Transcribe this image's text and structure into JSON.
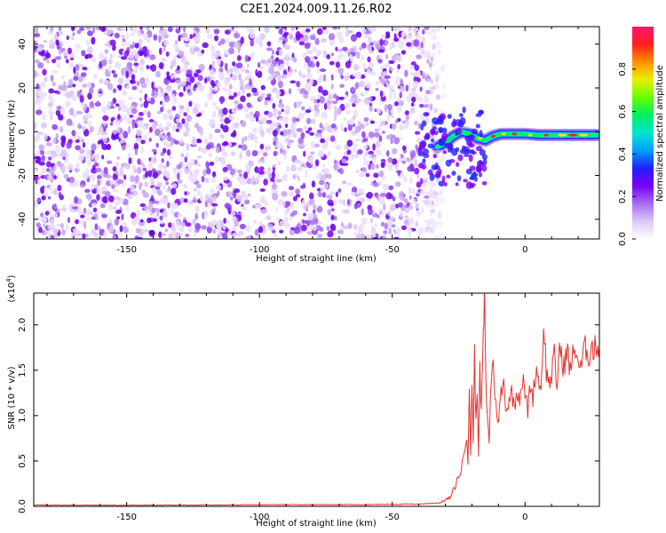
{
  "figure": {
    "title": "C2E1.2024.009.11.26.R02"
  },
  "colors": {
    "snr_line": "#e8332e",
    "axis": "#000000",
    "colorbar_stops": [
      "#ffffff",
      "#dcc8f5",
      "#a66cf0",
      "#7a00f5",
      "#2020ff",
      "#00a0ff",
      "#00e5d0",
      "#00f060",
      "#66ff00",
      "#e8f000",
      "#ff9000",
      "#ff2020",
      "#ff1470"
    ]
  },
  "chart_data": [
    {
      "id": "spectrogram",
      "type": "heatmap",
      "title": "C2E1.2024.009.11.26.R02",
      "xlabel": "Height of straight line (km)",
      "ylabel": "Frequency (Hz)",
      "xlim": [
        -185,
        28
      ],
      "ylim": [
        -49,
        48
      ],
      "x_ticks": [
        -150,
        -100,
        -50,
        0
      ],
      "x_tick_labels": [
        "-150",
        "-100",
        "-50",
        "0"
      ],
      "y_ticks": [
        -40,
        -20,
        0,
        20,
        40
      ],
      "y_tick_labels": [
        "-40",
        "-20",
        "0",
        "20",
        "40"
      ],
      "noise_region_x": [
        -185,
        -33
      ],
      "signal_track": [
        {
          "x": -33,
          "y": -7
        },
        {
          "x": -30,
          "y": -5
        },
        {
          "x": -27,
          "y": -2
        },
        {
          "x": -24,
          "y": 0
        },
        {
          "x": -21,
          "y": -1
        },
        {
          "x": -18,
          "y": -3
        },
        {
          "x": -15,
          "y": -4
        },
        {
          "x": -12,
          "y": -2
        },
        {
          "x": -9,
          "y": -1
        },
        {
          "x": -5,
          "y": -1
        },
        {
          "x": 0,
          "y": -1
        },
        {
          "x": 5,
          "y": -1.5
        },
        {
          "x": 10,
          "y": -1.5
        },
        {
          "x": 15,
          "y": -1.5
        },
        {
          "x": 20,
          "y": -1.5
        },
        {
          "x": 25,
          "y": -1.5
        },
        {
          "x": 27,
          "y": -1.5
        }
      ],
      "colorbar": {
        "label": "Normalized spectral amplitude",
        "range": [
          0,
          1
        ],
        "ticks": [
          0,
          0.2,
          0.4,
          0.6,
          0.8
        ],
        "tick_labels": [
          "0.0",
          "0.2",
          "0.4",
          "0.6",
          "0.8"
        ]
      }
    },
    {
      "id": "snr",
      "type": "line",
      "xlabel": "Height of straight line (km)",
      "ylabel": "SNR (10 * v/v)",
      "y_multiplier": "(x10",
      "y_multiplier_exp": "4",
      "y_multiplier_close": ")",
      "xlim": [
        -185,
        28
      ],
      "ylim": [
        0,
        23500
      ],
      "x_ticks": [
        -150,
        -100,
        -50,
        0
      ],
      "x_tick_labels": [
        "-150",
        "-100",
        "-50",
        "0"
      ],
      "y_ticks": [
        0,
        5000,
        10000,
        15000,
        20000
      ],
      "y_tick_labels": [
        "0.0",
        "0.5",
        "1.0",
        "1.5",
        "2.0"
      ],
      "series": [
        {
          "x": [
            -185,
            -150,
            -100,
            -60,
            -40,
            -32,
            -28,
            -26,
            -24,
            -23,
            -22,
            -21.5,
            -21,
            -20.5,
            -20,
            -19.5,
            -19,
            -18.5,
            -18,
            -17.5,
            -17,
            -16.5,
            -16,
            -15.5,
            -15.2,
            -15,
            -14.5,
            -14,
            -13.5,
            -13,
            -12,
            -11,
            -10,
            -9,
            -8,
            -7,
            -6,
            -5,
            -4,
            -3,
            -2,
            -1,
            0,
            1,
            2,
            3,
            4,
            5,
            6,
            7,
            8,
            9,
            10,
            11,
            12,
            13,
            14,
            15,
            16,
            17,
            18,
            19,
            20,
            21,
            22,
            23,
            24,
            25,
            26,
            27,
            28
          ],
          "y": [
            150,
            120,
            180,
            200,
            250,
            400,
            1000,
            2500,
            4000,
            6000,
            8000,
            5000,
            12000,
            6000,
            14000,
            7000,
            17000,
            9000,
            13000,
            6000,
            15000,
            10000,
            16000,
            20000,
            24000,
            17000,
            12000,
            9000,
            7000,
            13000,
            16000,
            11000,
            9500,
            12500,
            13500,
            10500,
            12000,
            12500,
            11000,
            13000,
            12000,
            14000,
            12500,
            10500,
            13500,
            12000,
            15000,
            14500,
            12500,
            20500,
            15000,
            13500,
            14500,
            16500,
            13000,
            18000,
            15500,
            16000,
            17000,
            15000,
            16500,
            17500,
            16000,
            15000,
            17000,
            17500,
            16500,
            17800,
            17000,
            18000,
            17500
          ]
        }
      ]
    }
  ]
}
